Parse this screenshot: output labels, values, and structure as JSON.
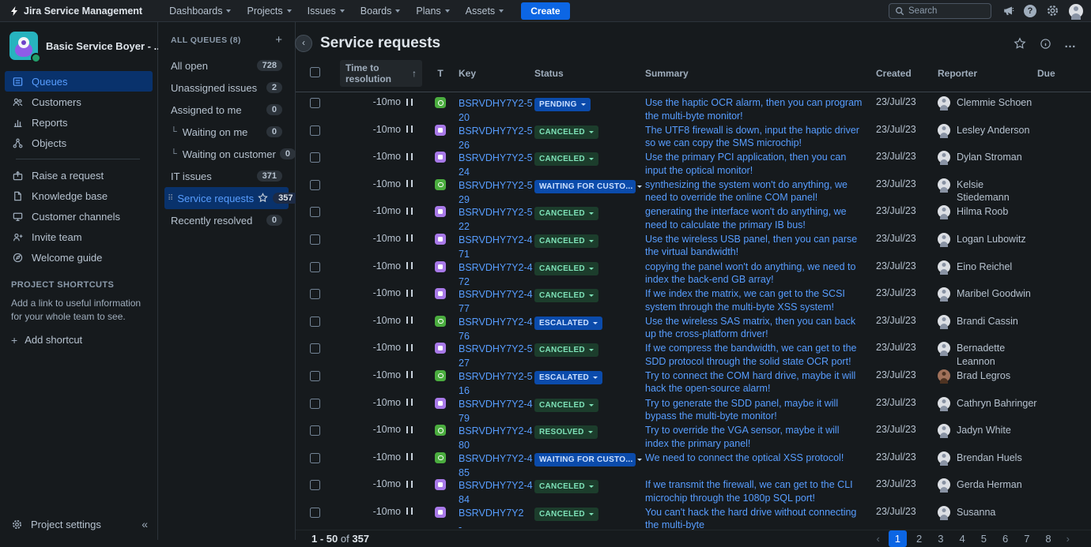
{
  "topbar": {
    "app_name": "Jira Service Management",
    "nav": [
      "Dashboards",
      "Projects",
      "Issues",
      "Boards",
      "Plans",
      "Assets"
    ],
    "create_label": "Create",
    "search_placeholder": "Search"
  },
  "sidebar": {
    "project_name": "Basic Service Boyer - ...",
    "items": [
      {
        "label": "Queues",
        "icon": "queues-icon",
        "selected": true
      },
      {
        "label": "Customers",
        "icon": "customers-icon"
      },
      {
        "label": "Reports",
        "icon": "reports-icon"
      },
      {
        "label": "Objects",
        "icon": "objects-icon"
      }
    ],
    "items2": [
      {
        "label": "Raise a request",
        "icon": "raise-request-icon"
      },
      {
        "label": "Knowledge base",
        "icon": "knowledge-base-icon"
      },
      {
        "label": "Customer channels",
        "icon": "customer-channels-icon"
      },
      {
        "label": "Invite team",
        "icon": "invite-team-icon"
      },
      {
        "label": "Welcome guide",
        "icon": "welcome-guide-icon"
      }
    ],
    "shortcuts": {
      "title": "PROJECT SHORTCUTS",
      "description": "Add a link to useful information for your whole team to see.",
      "add_label": "Add shortcut"
    },
    "project_settings_label": "Project settings"
  },
  "queues_panel": {
    "header": "ALL QUEUES (8)",
    "items": [
      {
        "label": "All open",
        "count": "728"
      },
      {
        "label": "Unassigned issues",
        "count": "2"
      },
      {
        "label": "Assigned to me",
        "count": "0"
      },
      {
        "label": "Waiting on me",
        "count": "0",
        "indent": true
      },
      {
        "label": "Waiting on customer",
        "count": "0",
        "indent": true
      },
      {
        "label": "IT issues",
        "count": "371"
      },
      {
        "label": "Service requests",
        "count": "357",
        "selected": true,
        "starred": true
      },
      {
        "label": "Recently resolved",
        "count": "0"
      }
    ]
  },
  "main": {
    "title": "Service requests",
    "table": {
      "columns": {
        "time": "Time to resolution",
        "sort_indicator": "↑",
        "type": "T",
        "key": "Key",
        "status": "Status",
        "summary": "Summary",
        "created": "Created",
        "reporter": "Reporter",
        "due": "Due"
      },
      "rows": [
        {
          "time": "-10mo",
          "type": "green",
          "key": "BSRVDHY7Y2-520",
          "status": "PENDING",
          "status_color": "blue",
          "summary": "Use the haptic OCR alarm, then you can program the multi-byte monitor!",
          "created": "23/Jul/23",
          "reporter": "Clemmie Schoen",
          "avatar": "default",
          "due": ""
        },
        {
          "time": "-10mo",
          "type": "purple",
          "key": "BSRVDHY7Y2-526",
          "status": "CANCELED",
          "status_color": "green",
          "summary": "The UTF8 firewall is down, input the haptic driver so we can copy the SMS microchip!",
          "created": "23/Jul/23",
          "reporter": "Lesley Anderson",
          "avatar": "default",
          "due": ""
        },
        {
          "time": "-10mo",
          "type": "purple",
          "key": "BSRVDHY7Y2-524",
          "status": "CANCELED",
          "status_color": "green",
          "summary": "Use the primary PCI application, then you can input the optical monitor!",
          "created": "23/Jul/23",
          "reporter": "Dylan Stroman",
          "avatar": "default",
          "due": ""
        },
        {
          "time": "-10mo",
          "type": "green",
          "key": "BSRVDHY7Y2-529",
          "status": "WAITING FOR CUSTO...",
          "status_color": "blue",
          "summary": "synthesizing the system won't do anything, we need to override the online COM panel!",
          "created": "23/Jul/23",
          "reporter": "Kelsie Stiedemann",
          "avatar": "default",
          "due": ""
        },
        {
          "time": "-10mo",
          "type": "purple",
          "key": "BSRVDHY7Y2-522",
          "status": "CANCELED",
          "status_color": "green",
          "summary": "generating the interface won't do anything, we need to calculate the primary IB bus!",
          "created": "23/Jul/23",
          "reporter": "Hilma Roob",
          "avatar": "default",
          "due": ""
        },
        {
          "time": "-10mo",
          "type": "purple",
          "key": "BSRVDHY7Y2-471",
          "status": "CANCELED",
          "status_color": "green",
          "summary": "Use the wireless USB panel, then you can parse the virtual bandwidth!",
          "created": "23/Jul/23",
          "reporter": "Logan Lubowitz",
          "avatar": "default",
          "due": ""
        },
        {
          "time": "-10mo",
          "type": "purple",
          "key": "BSRVDHY7Y2-472",
          "status": "CANCELED",
          "status_color": "green",
          "summary": "copying the panel won't do anything, we need to index the back-end GB array!",
          "created": "23/Jul/23",
          "reporter": "Eino Reichel",
          "avatar": "default",
          "due": ""
        },
        {
          "time": "-10mo",
          "type": "purple",
          "key": "BSRVDHY7Y2-477",
          "status": "CANCELED",
          "status_color": "green",
          "summary": "If we index the matrix, we can get to the SCSI system through the multi-byte XSS system!",
          "created": "23/Jul/23",
          "reporter": "Maribel Goodwin",
          "avatar": "default",
          "due": ""
        },
        {
          "time": "-10mo",
          "type": "green",
          "key": "BSRVDHY7Y2-476",
          "status": "ESCALATED",
          "status_color": "blue",
          "summary": "Use the wireless SAS matrix, then you can back up the cross-platform driver!",
          "created": "23/Jul/23",
          "reporter": "Brandi Cassin",
          "avatar": "default",
          "due": ""
        },
        {
          "time": "-10mo",
          "type": "purple",
          "key": "BSRVDHY7Y2-527",
          "status": "CANCELED",
          "status_color": "green",
          "summary": "If we compress the bandwidth, we can get to the SDD protocol through the solid state OCR port!",
          "created": "23/Jul/23",
          "reporter": "Bernadette Leannon",
          "avatar": "default",
          "due": ""
        },
        {
          "time": "-10mo",
          "type": "green",
          "key": "BSRVDHY7Y2-516",
          "status": "ESCALATED",
          "status_color": "blue",
          "summary": "Try to connect the COM hard drive, maybe it will hack the open-source alarm!",
          "created": "23/Jul/23",
          "reporter": "Brad Legros",
          "avatar": "photo",
          "due": ""
        },
        {
          "time": "-10mo",
          "type": "purple",
          "key": "BSRVDHY7Y2-479",
          "status": "CANCELED",
          "status_color": "green",
          "summary": "Try to generate the SDD panel, maybe it will bypass the multi-byte monitor!",
          "created": "23/Jul/23",
          "reporter": "Cathryn Bahringer",
          "avatar": "default",
          "due": ""
        },
        {
          "time": "-10mo",
          "type": "green",
          "key": "BSRVDHY7Y2-480",
          "status": "RESOLVED",
          "status_color": "green",
          "summary": "Try to override the VGA sensor, maybe it will index the primary panel!",
          "created": "23/Jul/23",
          "reporter": "Jadyn White",
          "avatar": "default",
          "due": ""
        },
        {
          "time": "-10mo",
          "type": "green",
          "key": "BSRVDHY7Y2-485",
          "status": "WAITING FOR CUSTO...",
          "status_color": "blue",
          "summary": "We need to connect the optical XSS protocol!",
          "created": "23/Jul/23",
          "reporter": "Brendan Huels",
          "avatar": "default",
          "due": ""
        },
        {
          "time": "-10mo",
          "type": "purple",
          "key": "BSRVDHY7Y2-484",
          "status": "CANCELED",
          "status_color": "green",
          "summary": "If we transmit the firewall, we can get to the CLI microchip through the 1080p SQL port!",
          "created": "23/Jul/23",
          "reporter": "Gerda Herman",
          "avatar": "default",
          "due": ""
        },
        {
          "time": "-10mo",
          "type": "purple",
          "key": "BSRVDHY7Y2-",
          "status": "CANCELED",
          "status_color": "green",
          "summary": "You can't hack the hard drive without connecting the multi-byte",
          "created": "23/Jul/23",
          "reporter": "Susanna",
          "avatar": "default",
          "due": ""
        }
      ]
    },
    "footer": {
      "range_start": "1 - 50",
      "range_sep": "of",
      "range_total": "357",
      "pages": [
        "1",
        "2",
        "3",
        "4",
        "5",
        "6",
        "7",
        "8"
      ],
      "current_page": "1"
    }
  },
  "colors": {
    "accent_blue": "#579DFF",
    "create_button": "#0C66E4",
    "selected_bg": "#09326C",
    "lozenge_blue_bg": "#0B4BAB",
    "lozenge_blue_text": "#CCE0FF",
    "lozenge_green_bg": "#1C3D2C",
    "lozenge_green_text": "#7EE2B8",
    "type_green": "#4BAD3F",
    "type_purple": "#A879E8"
  }
}
